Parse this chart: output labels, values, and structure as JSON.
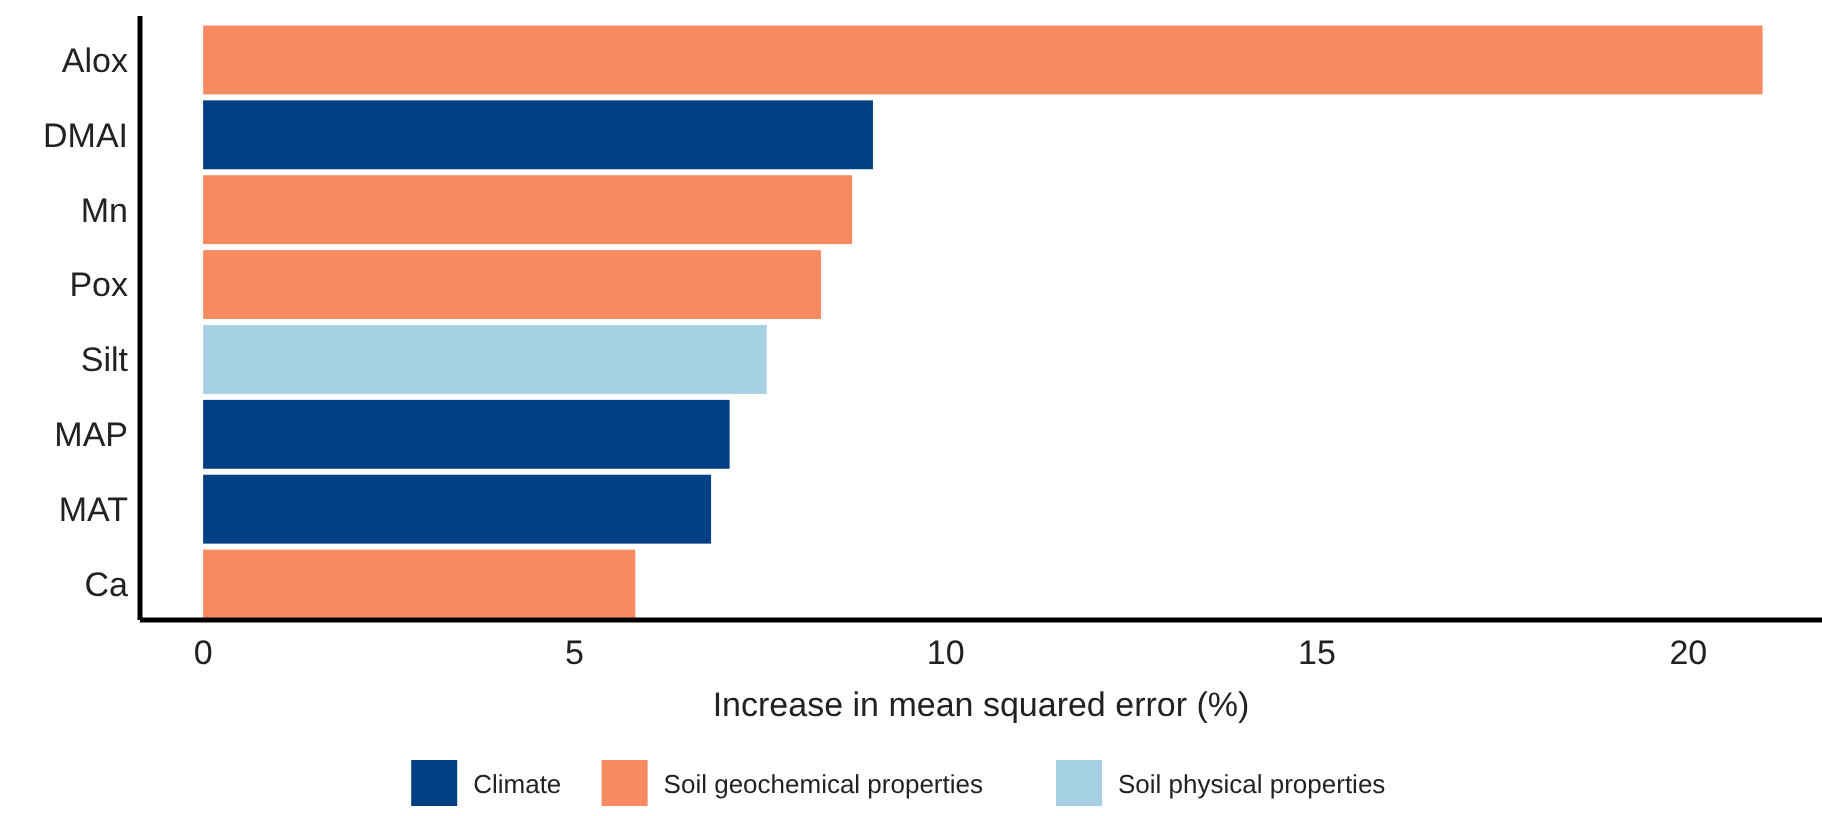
{
  "chart_data": {
    "type": "bar",
    "orientation": "horizontal",
    "xlabel": "Increase in mean squared error (%)",
    "categories": [
      "Alox",
      "DMAI",
      "Mn",
      "Pox",
      "Silt",
      "MAP",
      "MAT",
      "Ca"
    ],
    "series": [
      {
        "name": "Climate",
        "color": "#023f83",
        "values": [
          null,
          9.02,
          null,
          null,
          null,
          7.09,
          6.84,
          null
        ]
      },
      {
        "name": "Soil geochemical properties",
        "color": "#f88a62",
        "values": [
          21.0,
          null,
          8.74,
          8.32,
          null,
          null,
          null,
          5.82
        ]
      },
      {
        "name": "Soil physical properties",
        "color": "#a6d0e4",
        "values": [
          null,
          null,
          null,
          null,
          7.59,
          null,
          null,
          null
        ]
      }
    ],
    "xlim": [
      -0.85,
      21.8
    ],
    "xticks": [
      0,
      5,
      10,
      15,
      20
    ],
    "legend": "bottom",
    "grid": false
  }
}
